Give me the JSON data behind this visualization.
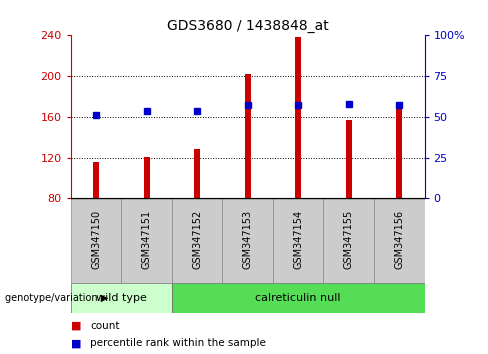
{
  "title": "GDS3680 / 1438848_at",
  "categories": [
    "GSM347150",
    "GSM347151",
    "GSM347152",
    "GSM347153",
    "GSM347154",
    "GSM347155",
    "GSM347156"
  ],
  "bar_values": [
    116,
    121,
    128,
    202,
    238,
    157,
    170
  ],
  "percentile_values": [
    162,
    166,
    166,
    172,
    172,
    173,
    172
  ],
  "bar_color": "#cc0000",
  "marker_color": "#0000cc",
  "ymin": 80,
  "ymax": 240,
  "yticks_left": [
    80,
    120,
    160,
    200,
    240
  ],
  "yticks_right": [
    0,
    25,
    50,
    75,
    100
  ],
  "group_labels": [
    "wild type",
    "calreticulin null"
  ],
  "wild_type_color": "#ccffcc",
  "calreticulin_color": "#55dd55",
  "bar_width": 0.12,
  "baseline": 80,
  "legend_count_color": "#cc0000",
  "legend_marker_color": "#0000cc",
  "right_yaxis_label": "%",
  "background_color": "#ffffff",
  "plot_bg": "#ffffff",
  "tick_label_fontsize": 8,
  "title_fontsize": 10,
  "gray_box_color": "#cccccc",
  "gray_box_edge": "#888888"
}
